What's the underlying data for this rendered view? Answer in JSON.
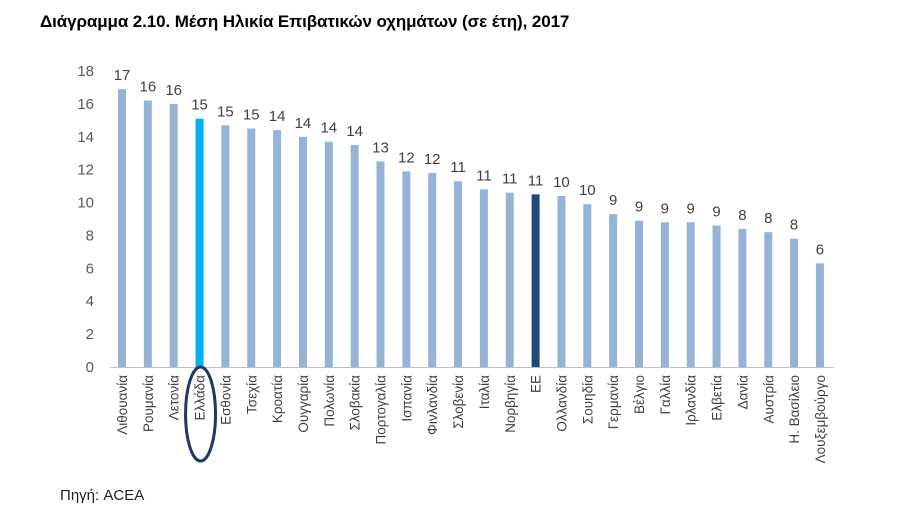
{
  "title": "Διάγραμμα 2.10. Μέση Ηλικία Επιβατικών οχημάτων (σε έτη), 2017",
  "source": "Πηγή: ACEA",
  "colors": {
    "default_bar": "#95B3D7",
    "highlight_greece": "#00B0F0",
    "highlight_eu": "#1F497D",
    "annotation_circle": "#1F3864",
    "axis": "#BFBFBF"
  },
  "chart_data": {
    "type": "bar",
    "title": "Διάγραμμα 2.10. Μέση Ηλικία Επιβατικών οχημάτων (σε έτη), 2017",
    "xlabel": "",
    "ylabel": "",
    "ylim": [
      0,
      18
    ],
    "yticks": [
      0,
      2,
      4,
      6,
      8,
      10,
      12,
      14,
      16,
      18
    ],
    "grid": false,
    "legend": "none",
    "categories": [
      "Λιθουανία",
      "Ρουμανία",
      "Λετονία",
      "Ελλάδα",
      "Εσθονία",
      "Τσεχία",
      "Κροατία",
      "Ουγγαρία",
      "Πολωνία",
      "Σλοβακία",
      "Πορτογαλία",
      "Ισπανία",
      "Φινλανδία",
      "Σλοβενία",
      "Ιταλία",
      "Νορβηγία",
      "ΕΕ",
      "Ολλανδία",
      "Σουηδία",
      "Γερμανία",
      "Βέλγιο",
      "Γαλλία",
      "Ιρλανδία",
      "Ελβετία",
      "Δανία",
      "Αυστρία",
      "Η. Βασίλειο",
      "Λουξεμβούργο"
    ],
    "values": [
      16.9,
      16.2,
      16.0,
      15.1,
      14.7,
      14.5,
      14.4,
      14.0,
      13.7,
      13.5,
      12.5,
      11.9,
      11.8,
      11.3,
      10.8,
      10.6,
      10.5,
      10.4,
      9.9,
      9.3,
      8.9,
      8.8,
      8.8,
      8.6,
      8.4,
      8.2,
      7.8,
      6.3
    ],
    "data_labels": [
      "17",
      "16",
      "16",
      "15",
      "15",
      "15",
      "14",
      "14",
      "14",
      "14",
      "13",
      "12",
      "12",
      "11",
      "11",
      "11",
      "11",
      "10",
      "10",
      "9",
      "9",
      "9",
      "9",
      "9",
      "8",
      "8",
      "8",
      "6"
    ],
    "highlights": {
      "Ελλάδα": "highlight_greece",
      "ΕΕ": "highlight_eu"
    },
    "annotations": [
      {
        "type": "ellipse",
        "target": "Ελλάδα",
        "text": ""
      }
    ],
    "source": "Πηγή: ACEA"
  }
}
